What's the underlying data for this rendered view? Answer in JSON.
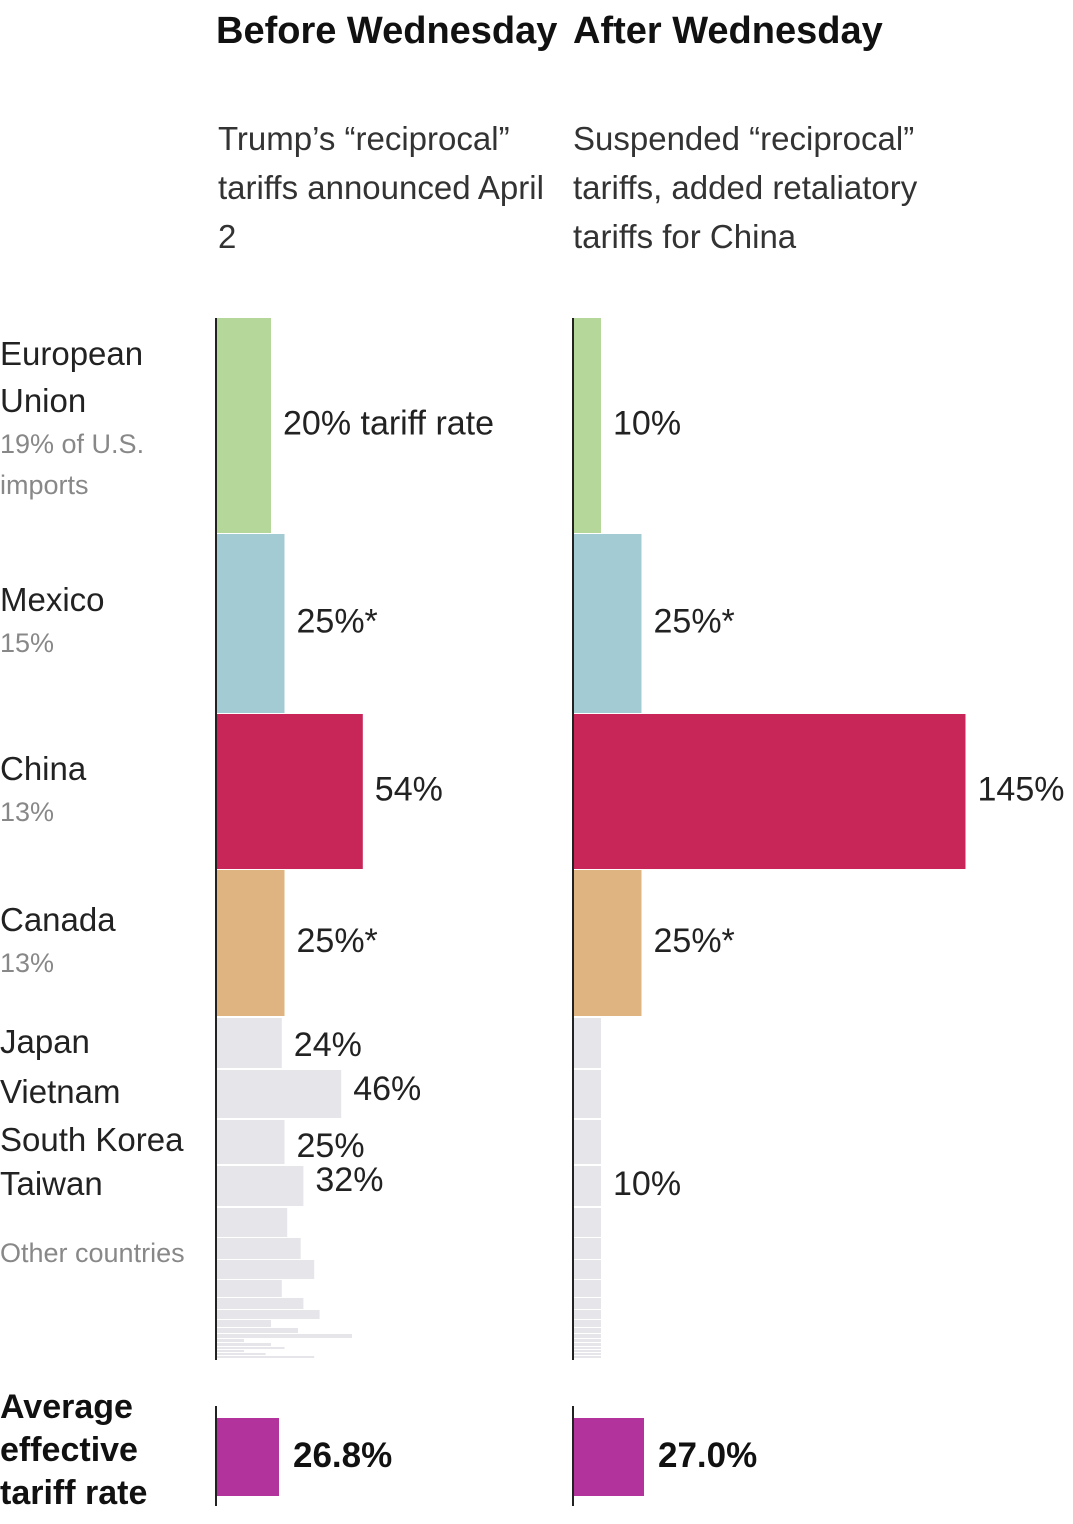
{
  "headers": {
    "before": {
      "title": "Before Wednesday",
      "subtitle": "Trump’s “reciprocal” tariffs announced April 2"
    },
    "after": {
      "title": "After Wednesday",
      "subtitle": "Suspended “reciprocal” tariffs, added retaliatory tariffs for China"
    }
  },
  "categories": [
    {
      "name": "European Union",
      "share": "19% of U.S. imports",
      "color": "#b5d89a"
    },
    {
      "name": "Mexico",
      "share": "15%",
      "color": "#a3cbd4"
    },
    {
      "name": "China",
      "share": "13%",
      "color": "#c82658"
    },
    {
      "name": "Canada",
      "share": "13%",
      "color": "#dfb480"
    }
  ],
  "small_countries": [
    "Japan",
    "Vietnam",
    "South Korea",
    "Taiwan"
  ],
  "other_label": "Other countries",
  "average": {
    "label": "Average effective tariff rate",
    "before": "26.8%",
    "after": "27.0%",
    "color": "#b2339c"
  },
  "chart_data": {
    "type": "bar",
    "series": [
      {
        "name": "Before Wednesday",
        "rows": [
          {
            "label": "European Union",
            "value": 20,
            "text": "20% tariff rate"
          },
          {
            "label": "Mexico",
            "value": 25,
            "text": "25%*"
          },
          {
            "label": "China",
            "value": 54,
            "text": "54%"
          },
          {
            "label": "Canada",
            "value": 25,
            "text": "25%*"
          },
          {
            "label": "Japan",
            "value": 24,
            "text": "24%"
          },
          {
            "label": "Vietnam",
            "value": 46,
            "text": "46%"
          },
          {
            "label": "South Korea",
            "value": 25,
            "text": "25%"
          },
          {
            "label": "Taiwan",
            "value": 32,
            "text": "32%"
          }
        ],
        "other_values": [
          26,
          31,
          36,
          24,
          32,
          38,
          20,
          30,
          50,
          10,
          20,
          25,
          10,
          18,
          36
        ]
      },
      {
        "name": "After Wednesday",
        "rows": [
          {
            "label": "European Union",
            "value": 10,
            "text": "10%"
          },
          {
            "label": "Mexico",
            "value": 25,
            "text": "25%*"
          },
          {
            "label": "China",
            "value": 145,
            "text": "145%"
          },
          {
            "label": "Canada",
            "value": 25,
            "text": "25%*"
          },
          {
            "label": "Japan",
            "value": 10,
            "text": ""
          },
          {
            "label": "Vietnam",
            "value": 10,
            "text": ""
          },
          {
            "label": "South Korea",
            "value": 10,
            "text": ""
          },
          {
            "label": "Taiwan",
            "value": 10,
            "text": "10%"
          }
        ],
        "other_values": [
          10,
          10,
          10,
          10,
          10,
          10,
          10,
          10,
          10,
          10,
          10,
          10,
          10,
          10,
          10
        ]
      }
    ],
    "import_share_pct": [
      19,
      15,
      13,
      13
    ],
    "other_color": "#e6e6ea"
  }
}
